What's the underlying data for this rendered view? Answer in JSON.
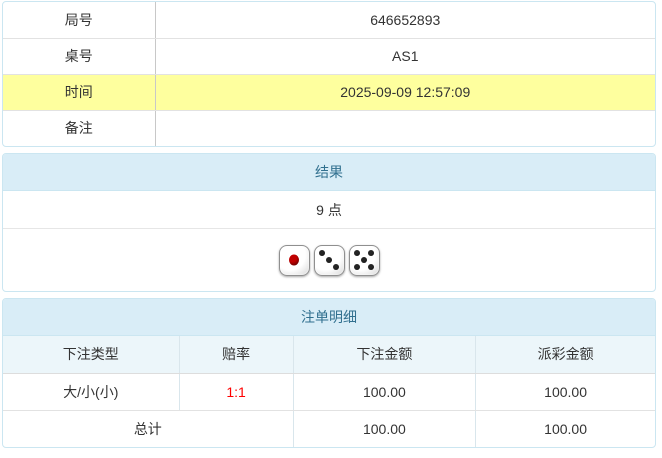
{
  "info_table": {
    "rows": [
      {
        "label": "局号",
        "value": "646652893"
      },
      {
        "label": "桌号",
        "value": "AS1"
      },
      {
        "label": "时间",
        "value": "2025-09-09 12:57:09",
        "highlight": true
      },
      {
        "label": "备注",
        "value": ""
      }
    ]
  },
  "result_panel": {
    "title": "结果",
    "points": "9 点",
    "dice": [
      {
        "value": 1,
        "pip_color": "#c00000"
      },
      {
        "value": 3,
        "pip_color": "#242424"
      },
      {
        "value": 5,
        "pip_color": "#242424"
      }
    ]
  },
  "bets_panel": {
    "title": "注单明细",
    "columns": [
      "下注类型",
      "赔率",
      "下注金额",
      "派彩金额"
    ],
    "rows": [
      {
        "type": "大/小(小)",
        "odds": "1:1",
        "bet": "100.00",
        "payout": "100.00"
      }
    ],
    "total_label": "总计",
    "total_bet": "100.00",
    "total_payout": "100.00"
  },
  "colors": {
    "panel_border": "#cbe6f1",
    "section_header_bg": "#d9edf7",
    "section_header_text": "#31708f",
    "highlight_row_bg": "#feff9e",
    "odds_text": "#ff0000",
    "table_header_bg": "#ecf6fa"
  }
}
